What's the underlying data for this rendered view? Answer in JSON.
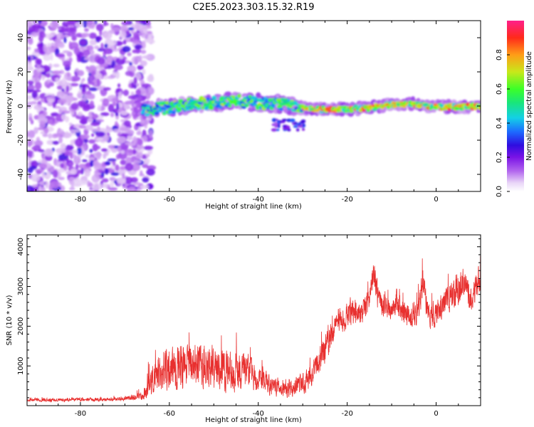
{
  "title": "C2E5.2023.303.15.32.R19",
  "colors": {
    "snr_line": "#e8302f",
    "axis": "#000000",
    "colormap": [
      "#ffffff",
      "#e9d6f7",
      "#b266ee",
      "#7a13e6",
      "#2f0de0",
      "#1d6bff",
      "#13d0e6",
      "#19e67a",
      "#3cff28",
      "#c8e81a",
      "#ff9d17",
      "#ff2a1a",
      "#ff1f8a"
    ]
  },
  "chart_data": [
    {
      "type": "heatmap",
      "xlabel": "Height of straight line (km)",
      "ylabel": "Frequency (Hz)",
      "xlim": [
        -92,
        10
      ],
      "ylim": [
        -50,
        50
      ],
      "xticks": [
        -80,
        -60,
        -40,
        -20,
        0
      ],
      "yticks": [
        -40,
        -20,
        0,
        20,
        40
      ],
      "colorbar": {
        "label": "Normalized spectral amplitude",
        "range": [
          0,
          1
        ],
        "ticks": [
          "0.0",
          "0.2",
          "0.4",
          "0.6",
          "0.8"
        ]
      },
      "ridge": {
        "description_x": [
          -65,
          -60,
          -55,
          -50,
          -45,
          -40,
          -35,
          -30,
          -25,
          -20,
          -15,
          -10,
          -5,
          0,
          5,
          10
        ],
        "center_freq_hz": [
          -2,
          -1,
          1,
          2,
          3,
          2,
          1,
          -1,
          -2,
          -2,
          -1,
          1,
          1,
          -0.5,
          -0.5,
          0
        ]
      },
      "secondary_blob": {
        "x": -33,
        "freq_hz": -11
      }
    },
    {
      "type": "line",
      "xlabel": "Height of straight line (km)",
      "ylabel": "SNR (10 * v/v)",
      "xlim": [
        -92,
        10
      ],
      "ylim": [
        0,
        4300
      ],
      "xticks": [
        -80,
        -60,
        -40,
        -20,
        0
      ],
      "yticks": [
        1000,
        2000,
        3000,
        4000
      ],
      "series": [
        {
          "x": [
            -92,
            -85,
            -80,
            -75,
            -70,
            -66,
            -64,
            -62,
            -60,
            -57,
            -54,
            -51,
            -48,
            -45,
            -42,
            -40,
            -37,
            -35,
            -32,
            -29,
            -27,
            -25,
            -23,
            -21,
            -19,
            -17,
            -15,
            -14,
            -13,
            -11,
            -9,
            -7,
            -5,
            -4,
            -3,
            -2,
            -1,
            0,
            2,
            4,
            5,
            6,
            8,
            10
          ],
          "mean": [
            150,
            140,
            160,
            150,
            170,
            230,
            600,
            850,
            1000,
            950,
            1050,
            1000,
            900,
            900,
            850,
            650,
            500,
            450,
            450,
            650,
            1000,
            1400,
            1900,
            2200,
            2400,
            2300,
            2700,
            3300,
            2700,
            2400,
            2600,
            2300,
            2100,
            2400,
            3000,
            2400,
            2200,
            2300,
            2600,
            2800,
            2900,
            3100,
            2700,
            3300
          ],
          "spread": [
            60,
            60,
            60,
            60,
            70,
            150,
            500,
            650,
            750,
            700,
            750,
            700,
            650,
            650,
            600,
            450,
            300,
            300,
            300,
            350,
            400,
            450,
            450,
            450,
            450,
            400,
            450,
            550,
            400,
            400,
            450,
            400,
            400,
            400,
            600,
            450,
            400,
            400,
            450,
            500,
            600,
            500,
            450,
            500
          ]
        }
      ]
    }
  ]
}
